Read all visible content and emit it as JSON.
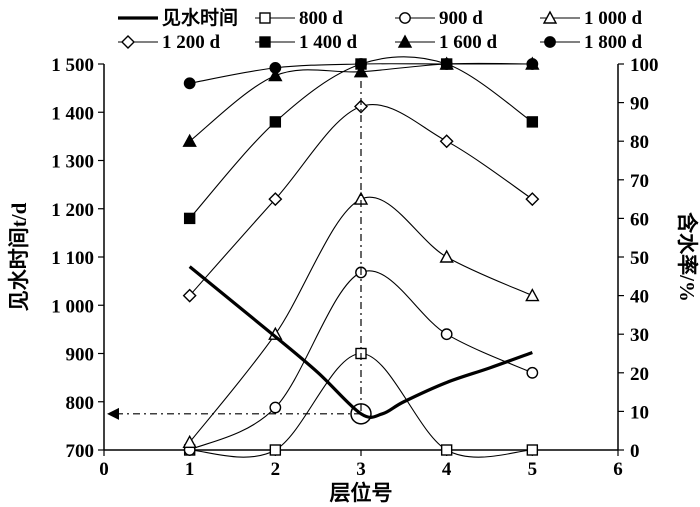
{
  "chart_data": {
    "type": "line",
    "x_label": "层位号",
    "y_left_label": "见水时间t/d",
    "y_right_label": "含水率/%",
    "x_range": [
      0,
      6
    ],
    "x_ticks": [
      "0",
      "1",
      "2",
      "3",
      "4",
      "5",
      "6"
    ],
    "y_left_range": [
      700,
      1500
    ],
    "y_left_ticks": [
      "700",
      "800",
      "900",
      "1 000",
      "1 100",
      "1 200",
      "1 300",
      "1 400",
      "1 500"
    ],
    "y_right_range": [
      0,
      100
    ],
    "y_right_ticks": [
      "0",
      "10",
      "20",
      "30",
      "40",
      "50",
      "60",
      "70",
      "80",
      "90",
      "100"
    ],
    "legend": [
      "见水时间",
      "800 d",
      "900 d",
      "1 000 d",
      "1 200 d",
      "1 400 d",
      "1 600 d",
      "1 800 d"
    ],
    "x": [
      1,
      2,
      3,
      4,
      5
    ],
    "breakthrough": {
      "name": "见水时间",
      "axis": "left",
      "x": [
        1,
        2,
        2.5,
        3,
        3.25,
        3.5,
        4,
        4.5,
        5
      ],
      "y": [
        1080,
        935,
        860,
        775,
        775,
        800,
        840,
        870,
        902
      ]
    },
    "series": [
      {
        "name": "800 d",
        "marker": "square-open",
        "values": [
          0,
          0,
          25,
          0,
          0
        ]
      },
      {
        "name": "900 d",
        "marker": "circle-open",
        "values": [
          0,
          11,
          46,
          30,
          20
        ]
      },
      {
        "name": "1 000 d",
        "marker": "triangle-open",
        "values": [
          2,
          30,
          65,
          50,
          40
        ]
      },
      {
        "name": "1 200 d",
        "marker": "diamond-open",
        "values": [
          40,
          65,
          89,
          80,
          65
        ]
      },
      {
        "name": "1 400 d",
        "marker": "square-filled",
        "values": [
          60,
          85,
          100,
          100,
          85
        ]
      },
      {
        "name": "1 600 d",
        "marker": "triangle-filled",
        "values": [
          80,
          97,
          98,
          100,
          100
        ]
      },
      {
        "name": "1 800 d",
        "marker": "circle-filled",
        "values": [
          95,
          99,
          100,
          100,
          100
        ]
      }
    ],
    "annotation": {
      "x": 3,
      "breakthrough_time": 775,
      "arrow_to": "left-axis"
    },
    "grid": false,
    "legend_position": "top"
  }
}
